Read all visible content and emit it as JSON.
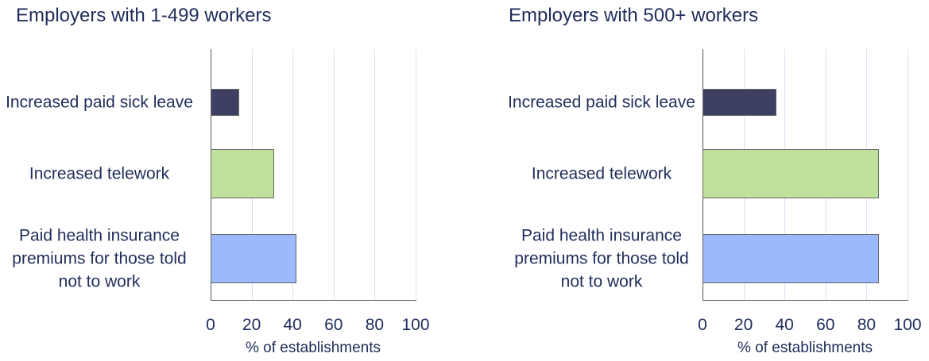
{
  "chart_data": [
    {
      "type": "bar",
      "orientation": "horizontal",
      "title": "Employers with 1-499 workers",
      "categories": [
        "Increased paid sick leave",
        "Increased telework",
        "Paid health insurance premiums for those told not to work"
      ],
      "values": [
        14,
        31,
        42
      ],
      "colors": [
        "#3d3f63",
        "#c0e19b",
        "#9bb9fc"
      ],
      "xlim": [
        0,
        100
      ],
      "xticks": [
        0,
        20,
        40,
        60,
        80,
        100
      ],
      "xlabel": "% of establishments",
      "grid": true
    },
    {
      "type": "bar",
      "orientation": "horizontal",
      "title": "Employers with 500+ workers",
      "categories": [
        "Increased paid sick leave",
        "Increased telework",
        "Paid health insurance premiums for those told not to work"
      ],
      "values": [
        36,
        86,
        86
      ],
      "colors": [
        "#3d3f63",
        "#c0e19b",
        "#9bb9fc"
      ],
      "xlim": [
        0,
        100
      ],
      "xticks": [
        0,
        20,
        40,
        60,
        80,
        100
      ],
      "xlabel": "% of establishments",
      "grid": true
    }
  ]
}
